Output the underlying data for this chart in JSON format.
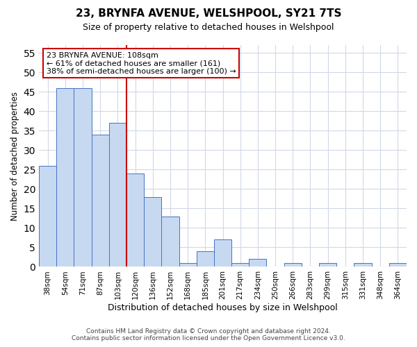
{
  "title": "23, BRYNFA AVENUE, WELSHPOOL, SY21 7TS",
  "subtitle": "Size of property relative to detached houses in Welshpool",
  "xlabel": "Distribution of detached houses by size in Welshpool",
  "ylabel": "Number of detached properties",
  "categories": [
    "38sqm",
    "54sqm",
    "71sqm",
    "87sqm",
    "103sqm",
    "120sqm",
    "136sqm",
    "152sqm",
    "168sqm",
    "185sqm",
    "201sqm",
    "217sqm",
    "234sqm",
    "250sqm",
    "266sqm",
    "283sqm",
    "299sqm",
    "315sqm",
    "331sqm",
    "348sqm",
    "364sqm"
  ],
  "values": [
    26,
    46,
    46,
    34,
    37,
    24,
    18,
    13,
    1,
    4,
    7,
    1,
    2,
    0,
    1,
    0,
    1,
    0,
    1,
    0,
    1
  ],
  "bar_color": "#c6d9f1",
  "bar_edge_color": "#4472c4",
  "vline_x": 4.5,
  "vline_color": "#cc0000",
  "annotation_line1": "23 BRYNFA AVENUE: 108sqm",
  "annotation_line2": "← 61% of detached houses are smaller (161)",
  "annotation_line3": "38% of semi-detached houses are larger (100) →",
  "annotation_box_edge": "#cc0000",
  "ylim": [
    0,
    57
  ],
  "yticks": [
    0,
    5,
    10,
    15,
    20,
    25,
    30,
    35,
    40,
    45,
    50,
    55
  ],
  "footer_line1": "Contains HM Land Registry data © Crown copyright and database right 2024.",
  "footer_line2": "Contains public sector information licensed under the Open Government Licence v3.0.",
  "bg_color": "#ffffff",
  "grid_color": "#d0d8e8"
}
